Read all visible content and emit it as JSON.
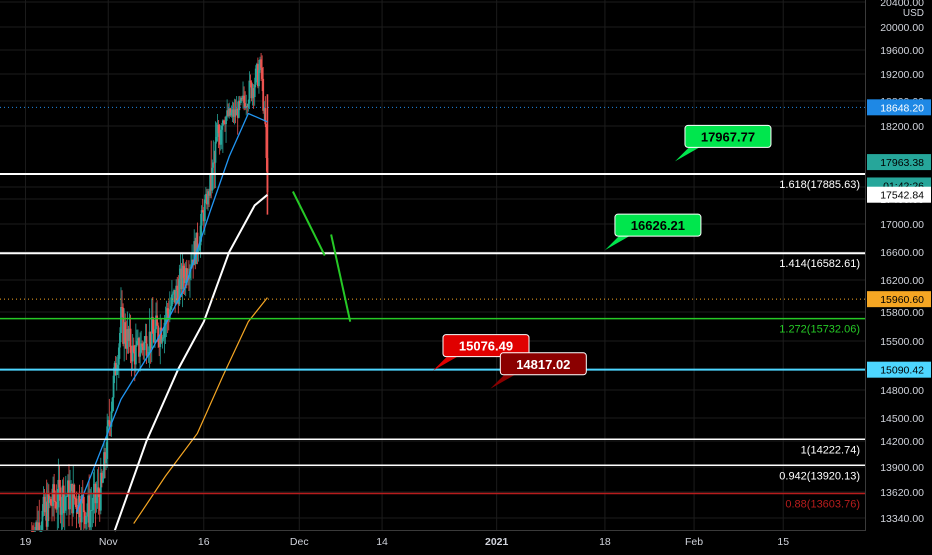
{
  "chart_data": {
    "type": "candlestick",
    "currency": "USD",
    "colors": {
      "background": "#000000",
      "grid": "#1c1c1c",
      "up": "#26a69a",
      "down": "#ef5350",
      "white_line": "#ffffff",
      "green_line": "#26c926",
      "cyan_line": "#4dd6ff",
      "red_line": "#b71c1c",
      "ma_white": "#ffffff",
      "ma_orange": "#f5a623",
      "ma_blue": "#2196f3",
      "green_label": "#00e64d",
      "red_label": "#e00000",
      "darkred_label": "#8b0000"
    },
    "y_axis": {
      "min": 13200,
      "max": 20400,
      "ticks": [
        13340,
        13620,
        13900,
        14200,
        14500,
        14800,
        15090.42,
        15500,
        15800,
        16200,
        16600,
        17000,
        17400,
        17800,
        18200,
        18800,
        19200,
        19600,
        20000,
        20400
      ],
      "tick_labels": [
        "13340.00",
        "13620.00",
        "13900.00",
        "14200.00",
        "14500.00",
        "14800.00",
        "15090.42",
        "15500.00",
        "15800.00",
        "16200.00",
        "16600.00",
        "17000.00",
        "17400.00",
        "17800.00",
        "18200.00",
        "18800.00",
        "19200.00",
        "19600.00",
        "20000.00",
        "20400.00"
      ]
    },
    "x_axis": {
      "start": "2020-10-15",
      "end": "2021-02-28",
      "ticks": [
        {
          "date": "2020-10-19",
          "label": "19"
        },
        {
          "date": "2020-11-01",
          "label": "Nov"
        },
        {
          "date": "2020-11-16",
          "label": "16"
        },
        {
          "date": "2020-12-01",
          "label": "Dec"
        },
        {
          "date": "2020-12-14",
          "label": "14"
        },
        {
          "date": "2021-01-01",
          "label": "2021"
        },
        {
          "date": "2021-01-18",
          "label": "18"
        },
        {
          "date": "2021-02-01",
          "label": "Feb"
        },
        {
          "date": "2021-02-15",
          "label": "15"
        }
      ]
    },
    "price_labels": [
      {
        "value": 18648.2,
        "text": "18648.20",
        "color": "#1e88e5",
        "text_color": "#ffffff",
        "dotted": true
      },
      {
        "value": 17963.38,
        "text": "17963.38",
        "color": "#26a69a",
        "text_color": "#000000"
      },
      {
        "value": 17810,
        "text": "01:42:26",
        "color": "#26a69a",
        "text_color": "#000000"
      },
      {
        "value": 17542.84,
        "text": "17542.84",
        "color": "#ffffff",
        "text_color": "#000000"
      },
      {
        "value": 15960.6,
        "text": "15960.60",
        "color": "#f5a623",
        "text_color": "#000000",
        "dotted": true
      },
      {
        "value": 15090.42,
        "text": "15090.42",
        "color": "#4dd6ff",
        "text_color": "#000000"
      }
    ],
    "horizontal_levels": [
      {
        "value": 17885.63,
        "label": "1.618(17885.63)",
        "color": "white",
        "width": 2
      },
      {
        "value": 16582.61,
        "label": "1.414(16582.61)",
        "color": "white",
        "width": 2
      },
      {
        "value": 15732.06,
        "label": "1.272(15732.06)",
        "color": "green",
        "width": 1.5
      },
      {
        "value": 15090.42,
        "label": "",
        "color": "cyan",
        "width": 2
      },
      {
        "value": 14222.74,
        "label": "1(14222.74)",
        "color": "white",
        "width": 1.5
      },
      {
        "value": 13920.13,
        "label": "0.942(13920.13)",
        "color": "white",
        "width": 1.5
      },
      {
        "value": 13603.76,
        "label": "0.88(13603.76)",
        "color": "red",
        "width": 1.5
      }
    ],
    "callouts": [
      {
        "text": "17967.77",
        "value": 17967.77,
        "date": "2021-01-29",
        "color": "green_label",
        "text_color": "#000000"
      },
      {
        "text": "16626.21",
        "value": 16626.21,
        "date": "2021-01-18",
        "color": "green_label",
        "text_color": "#000000"
      },
      {
        "text": "15076.49",
        "value": 15076.49,
        "date": "2020-12-22",
        "color": "red_label",
        "text_color": "#ffffff"
      },
      {
        "text": "14817.02",
        "value": 14817.02,
        "date": "2020-12-31",
        "color": "darkred_label",
        "text_color": "#ffffff"
      }
    ],
    "projection_lines": [
      {
        "from": {
          "date": "2020-11-30",
          "value": 17650
        },
        "to": {
          "date": "2020-12-05",
          "value": 16550
        }
      },
      {
        "from": {
          "date": "2020-12-06",
          "value": 16850
        },
        "to": {
          "date": "2020-12-09",
          "value": 15700
        }
      }
    ],
    "candles_anchor": {
      "start": "2020-10-20",
      "end": "2020-11-26"
    },
    "price_path": [
      [
        "2020-10-20",
        13150
      ],
      [
        "2020-10-23",
        13500
      ],
      [
        "2020-10-25",
        13600
      ],
      [
        "2020-10-27",
        13550
      ],
      [
        "2020-10-29",
        13400
      ],
      [
        "2020-10-31",
        13650
      ],
      [
        "2020-11-03",
        15700
      ],
      [
        "2020-11-05",
        15300
      ],
      [
        "2020-11-07",
        15500
      ],
      [
        "2020-11-09",
        15600
      ],
      [
        "2020-11-11",
        15900
      ],
      [
        "2020-11-13",
        16300
      ],
      [
        "2020-11-15",
        16700
      ],
      [
        "2020-11-17",
        17700
      ],
      [
        "2020-11-19",
        18400
      ],
      [
        "2020-11-21",
        18500
      ],
      [
        "2020-11-23",
        18900
      ],
      [
        "2020-11-24",
        19100
      ],
      [
        "2020-11-25",
        19300
      ],
      [
        "2020-11-26",
        17600
      ]
    ],
    "ma_white_path": [
      [
        "2020-11-02",
        13200
      ],
      [
        "2020-11-07",
        14200
      ],
      [
        "2020-11-12",
        15100
      ],
      [
        "2020-11-16",
        15700
      ],
      [
        "2020-11-20",
        16600
      ],
      [
        "2020-11-24",
        17300
      ],
      [
        "2020-11-26",
        17540
      ]
    ],
    "ma_orange_path": [
      [
        "2020-11-05",
        13280
      ],
      [
        "2020-11-10",
        13800
      ],
      [
        "2020-11-15",
        14300
      ],
      [
        "2020-11-19",
        15000
      ],
      [
        "2020-11-23",
        15700
      ],
      [
        "2020-11-26",
        15980
      ]
    ],
    "ma_blue_path": [
      [
        "2020-10-27",
        13400
      ],
      [
        "2020-11-03",
        14700
      ],
      [
        "2020-11-08",
        15400
      ],
      [
        "2020-11-13",
        16100
      ],
      [
        "2020-11-17",
        17200
      ],
      [
        "2020-11-20",
        18000
      ],
      [
        "2020-11-23",
        18500
      ],
      [
        "2020-11-26",
        18300
      ]
    ]
  }
}
